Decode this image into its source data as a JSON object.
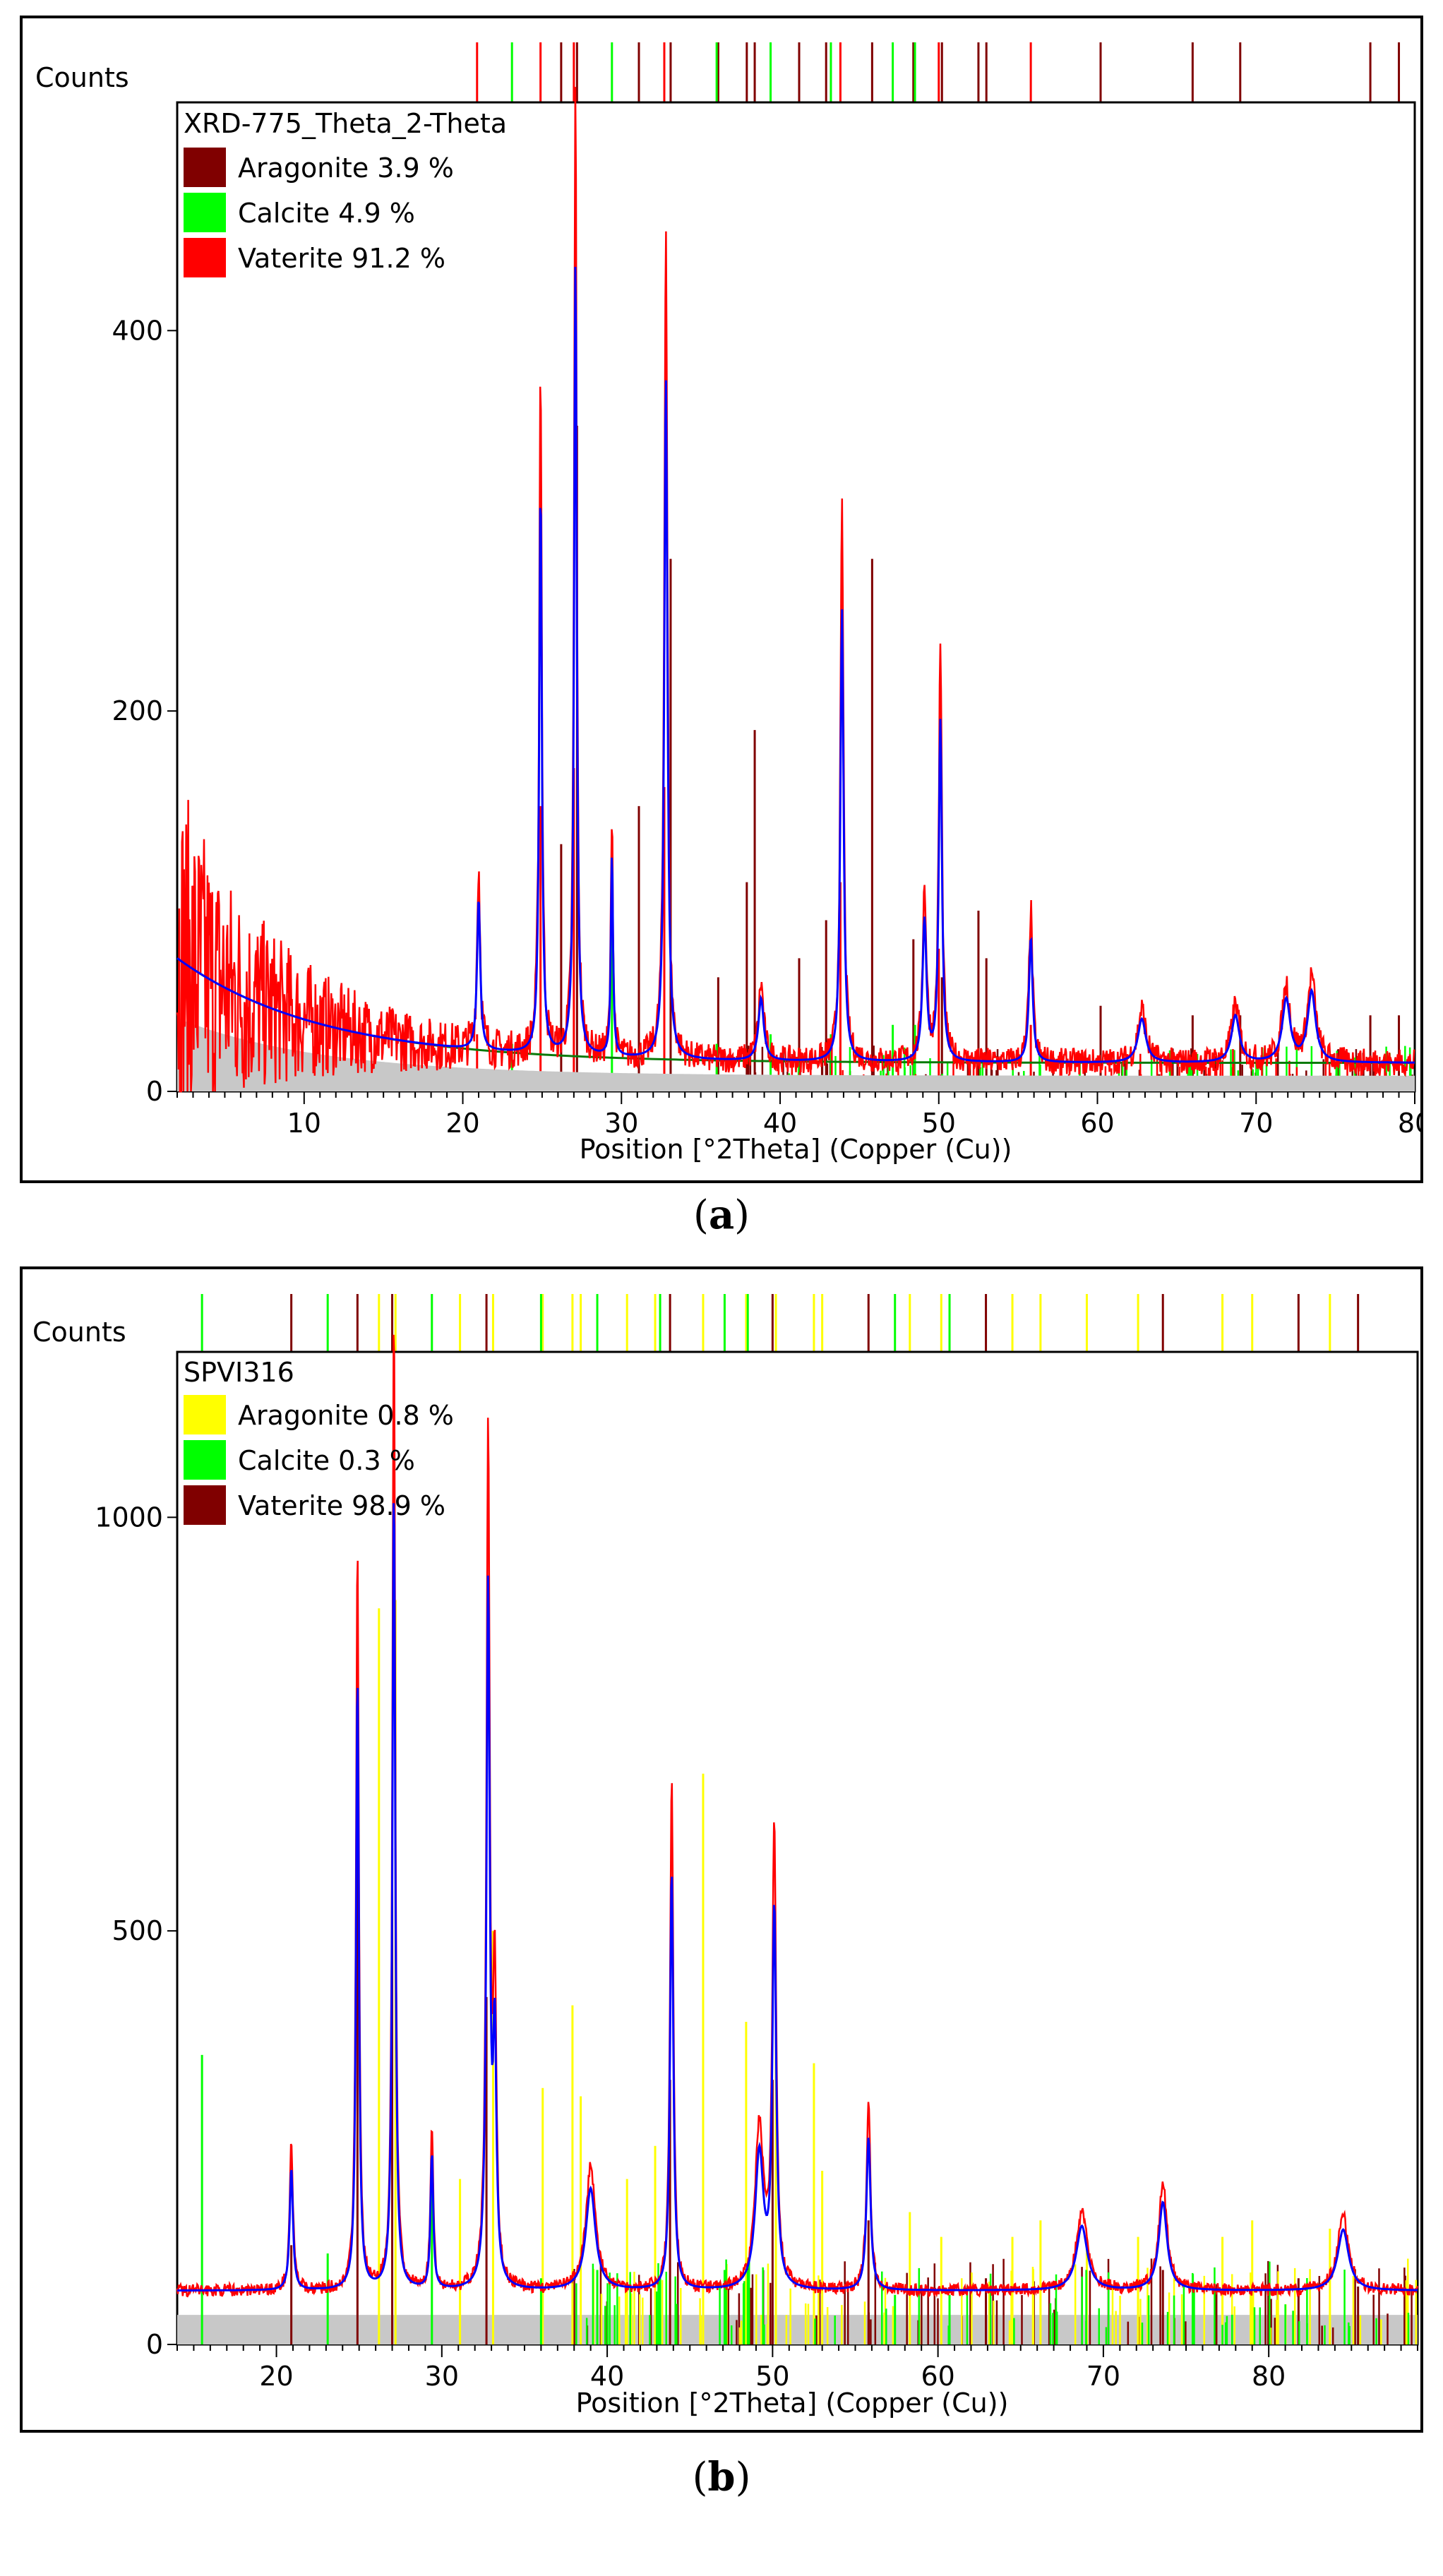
{
  "chart_data": [
    {
      "type": "line",
      "panel": "a",
      "caption_label": "a",
      "title": "XRD-775_Theta_2-Theta",
      "ylabel": "Counts",
      "xlabel": "Position [°2Theta] (Copper (Cu))",
      "xlim": [
        2,
        80
      ],
      "ylim": [
        0,
        520
      ],
      "x_ticks": [
        10,
        20,
        30,
        40,
        50,
        60,
        70,
        80
      ],
      "y_ticks": [
        0,
        200,
        400
      ],
      "legend": [
        {
          "label": "Aragonite 3.9 %",
          "color": "#800000"
        },
        {
          "label": "Calcite 4.9 %",
          "color": "#00ff00"
        },
        {
          "label": "Vaterite 91.2 %",
          "color": "#ff0000"
        }
      ],
      "background": {
        "start": 70,
        "k": 0.11,
        "floor": 15
      },
      "noise": {
        "base": 20,
        "amp": 260,
        "k": 0.16
      },
      "peaks": [
        {
          "x": 21.0,
          "y": 97,
          "w": 0.12
        },
        {
          "x": 24.9,
          "y": 363,
          "w": 0.1
        },
        {
          "x": 27.1,
          "y": 510,
          "w": 0.1
        },
        {
          "x": 29.4,
          "y": 130,
          "w": 0.08
        },
        {
          "x": 32.8,
          "y": 438,
          "w": 0.12
        },
        {
          "x": 38.8,
          "y": 40,
          "w": 0.2
        },
        {
          "x": 43.9,
          "y": 290,
          "w": 0.12
        },
        {
          "x": 49.1,
          "y": 90,
          "w": 0.15
        },
        {
          "x": 50.1,
          "y": 218,
          "w": 0.12
        },
        {
          "x": 55.8,
          "y": 80,
          "w": 0.14
        },
        {
          "x": 62.8,
          "y": 28,
          "w": 0.3
        },
        {
          "x": 68.7,
          "y": 30,
          "w": 0.3
        },
        {
          "x": 71.9,
          "y": 40,
          "w": 0.3
        },
        {
          "x": 73.5,
          "y": 45,
          "w": 0.3
        }
      ],
      "references": [
        {
          "phase": "Aragonite",
          "color": "#800000",
          "x": [
            26.2,
            27.2,
            31.1,
            33.1,
            36.1,
            37.9,
            38.4,
            41.2,
            42.9,
            45.8,
            48.4,
            50.2,
            52.5,
            53.0,
            60.2,
            66.0,
            69.0,
            77.2,
            79.0
          ],
          "y": [
            130,
            350,
            150,
            280,
            60,
            110,
            190,
            70,
            90,
            280,
            80,
            60,
            95,
            70,
            45,
            40,
            40,
            40,
            40
          ]
        },
        {
          "phase": "Calcite",
          "color": "#00ff00",
          "x": [
            23.1,
            29.4,
            36.0,
            39.4,
            43.2,
            47.1,
            48.5
          ],
          "y": [
            25,
            90,
            25,
            30,
            30,
            35,
            35
          ]
        },
        {
          "phase": "Vaterite",
          "color": "#ff0000",
          "x": [
            20.9,
            24.9,
            27.0,
            32.7,
            43.8,
            50.0,
            55.8
          ],
          "y": [
            30,
            150,
            170,
            160,
            110,
            75,
            35
          ]
        }
      ]
    },
    {
      "type": "line",
      "panel": "b",
      "caption_label": "b",
      "title": "SPVI316",
      "ylabel": "Counts",
      "xlabel": "Position [°2Theta] (Copper (Cu))",
      "xlim": [
        14,
        89
      ],
      "ylim": [
        0,
        1200
      ],
      "x_ticks": [
        20,
        30,
        40,
        50,
        60,
        70,
        80
      ],
      "y_ticks": [
        0,
        500,
        1000
      ],
      "legend": [
        {
          "label": "Aragonite 0.8 %",
          "color": "#ffff00"
        },
        {
          "label": "Calcite 0.3 %",
          "color": "#00ff00"
        },
        {
          "label": "Vaterite 98.9 %",
          "color": "#800000"
        }
      ],
      "background": {
        "start": 65,
        "k": 0.0,
        "floor": 55
      },
      "noise": {
        "base": 25,
        "amp": 0,
        "k": 0.1
      },
      "peaks": [
        {
          "x": 20.9,
          "y": 180,
          "w": 0.12
        },
        {
          "x": 24.9,
          "y": 910,
          "w": 0.1
        },
        {
          "x": 27.1,
          "y": 1190,
          "w": 0.1
        },
        {
          "x": 29.4,
          "y": 200,
          "w": 0.1
        },
        {
          "x": 32.8,
          "y": 1030,
          "w": 0.12
        },
        {
          "x": 33.2,
          "y": 350,
          "w": 0.12
        },
        {
          "x": 39.0,
          "y": 150,
          "w": 0.35
        },
        {
          "x": 43.9,
          "y": 620,
          "w": 0.12
        },
        {
          "x": 49.2,
          "y": 200,
          "w": 0.3
        },
        {
          "x": 50.1,
          "y": 555,
          "w": 0.14
        },
        {
          "x": 55.8,
          "y": 225,
          "w": 0.15
        },
        {
          "x": 68.7,
          "y": 95,
          "w": 0.4
        },
        {
          "x": 73.6,
          "y": 130,
          "w": 0.3
        },
        {
          "x": 84.5,
          "y": 90,
          "w": 0.4
        }
      ],
      "references": [
        {
          "phase": "Vaterite",
          "color": "#800000",
          "x": [
            20.9,
            24.9,
            27.0,
            32.7,
            43.8,
            50.0,
            55.8,
            62.9,
            73.6,
            81.8,
            85.4
          ],
          "y": [
            120,
            650,
            600,
            420,
            320,
            320,
            150,
            80,
            90,
            80,
            70
          ]
        },
        {
          "phase": "Aragonite",
          "color": "#ffff00",
          "x": [
            26.2,
            27.2,
            31.1,
            33.1,
            36.1,
            37.9,
            38.4,
            41.2,
            42.9,
            45.8,
            48.4,
            50.2,
            52.5,
            53.0,
            58.3,
            60.2,
            64.5,
            66.2,
            69.0,
            72.1,
            77.2,
            79.0,
            83.7
          ],
          "y": [
            890,
            900,
            200,
            500,
            310,
            410,
            300,
            200,
            240,
            690,
            390,
            390,
            340,
            210,
            160,
            130,
            130,
            150,
            130,
            130,
            130,
            150,
            140
          ]
        },
        {
          "phase": "Calcite",
          "color": "#00ff00",
          "x": [
            15.5,
            23.1,
            29.4,
            36.0,
            39.4,
            43.2,
            47.1,
            48.5,
            57.4,
            60.7
          ],
          "y": [
            350,
            110,
            250,
            80,
            90,
            80,
            90,
            90,
            60,
            60
          ]
        }
      ]
    }
  ]
}
